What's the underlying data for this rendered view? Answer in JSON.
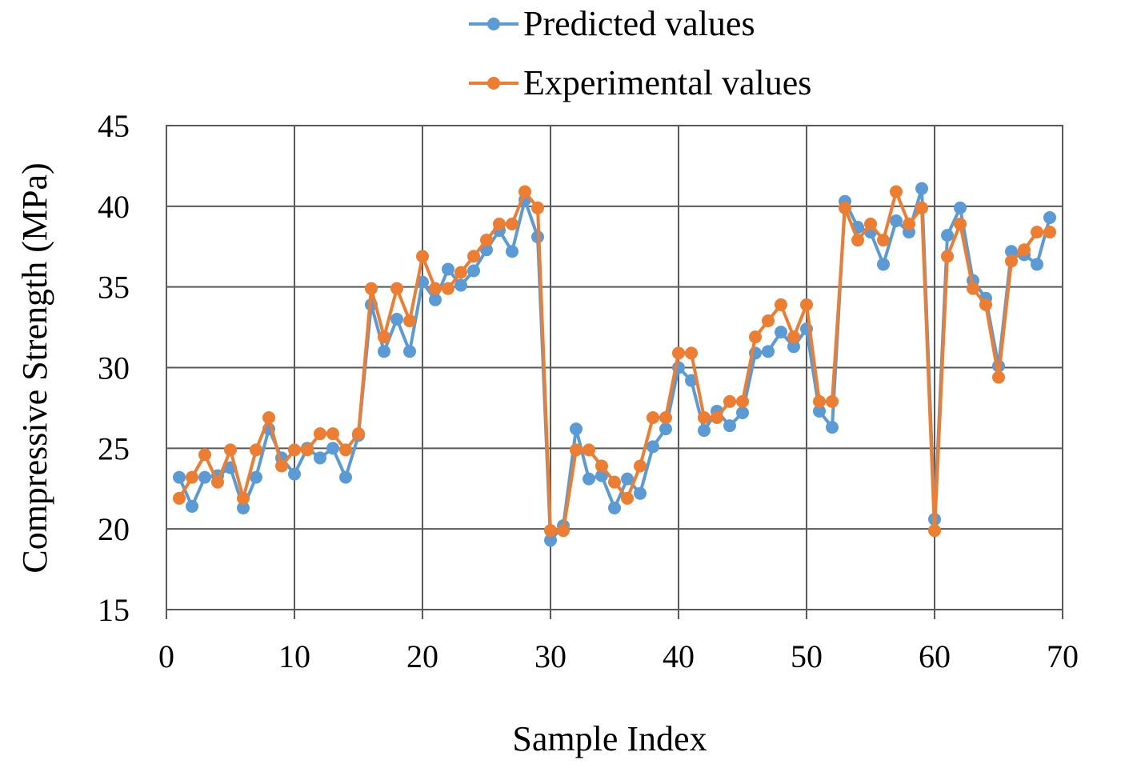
{
  "chart_data": {
    "type": "line",
    "title": "",
    "xlabel": "Sample Index",
    "ylabel": "Compressive Strength (MPa)",
    "xlim": [
      0,
      70
    ],
    "ylim": [
      15,
      45
    ],
    "xticks": [
      0,
      10,
      20,
      30,
      40,
      50,
      60,
      70
    ],
    "yticks": [
      15,
      20,
      25,
      30,
      35,
      40,
      45
    ],
    "grid": true,
    "legend_position": "top-center",
    "x": [
      1,
      2,
      3,
      4,
      5,
      6,
      7,
      8,
      9,
      10,
      11,
      12,
      13,
      14,
      15,
      16,
      17,
      18,
      19,
      20,
      21,
      22,
      23,
      24,
      25,
      26,
      27,
      28,
      29,
      30,
      31,
      32,
      33,
      34,
      35,
      36,
      37,
      38,
      39,
      40,
      41,
      42,
      43,
      44,
      45,
      46,
      47,
      48,
      49,
      50,
      51,
      52,
      53,
      54,
      55,
      56,
      57,
      58,
      59,
      60,
      61,
      62,
      63,
      64,
      65,
      66,
      67,
      68,
      69
    ],
    "series": [
      {
        "name": "Predicted values",
        "color": "#5B9BD5",
        "values": [
          23.2,
          21.4,
          23.2,
          23.3,
          23.8,
          21.3,
          23.2,
          26.2,
          24.4,
          23.4,
          25.0,
          24.4,
          25.0,
          23.2,
          25.8,
          33.9,
          31.0,
          33.0,
          31.0,
          35.3,
          34.2,
          36.1,
          35.1,
          36.0,
          37.3,
          38.5,
          37.2,
          40.4,
          38.1,
          19.3,
          20.2,
          26.2,
          23.1,
          23.3,
          21.3,
          23.1,
          22.2,
          25.1,
          26.2,
          30.0,
          29.2,
          26.1,
          27.3,
          26.4,
          27.2,
          30.9,
          31.0,
          32.2,
          31.3,
          32.4,
          27.3,
          26.3,
          40.3,
          38.7,
          38.4,
          36.4,
          39.1,
          38.4,
          41.1,
          20.6,
          38.2,
          39.9,
          35.4,
          34.3,
          30.1,
          37.2,
          37.0,
          36.4,
          39.3
        ]
      },
      {
        "name": "Experimental values",
        "color": "#ED7D31",
        "values": [
          21.9,
          23.2,
          24.6,
          22.9,
          24.9,
          21.9,
          24.9,
          26.9,
          23.9,
          24.9,
          24.9,
          25.9,
          25.9,
          24.9,
          25.9,
          34.9,
          31.9,
          34.9,
          32.9,
          36.9,
          34.9,
          34.9,
          35.9,
          36.9,
          37.9,
          38.9,
          38.9,
          40.9,
          39.9,
          19.9,
          19.9,
          24.9,
          24.9,
          23.9,
          22.9,
          21.9,
          23.9,
          26.9,
          26.9,
          30.9,
          30.9,
          26.9,
          26.9,
          27.9,
          27.9,
          31.9,
          32.9,
          33.9,
          31.9,
          33.9,
          27.9,
          27.9,
          39.9,
          37.9,
          38.9,
          37.9,
          40.9,
          38.9,
          39.9,
          19.9,
          36.9,
          38.9,
          34.9,
          33.9,
          29.4,
          36.6,
          37.3,
          38.4,
          38.4
        ]
      }
    ]
  }
}
